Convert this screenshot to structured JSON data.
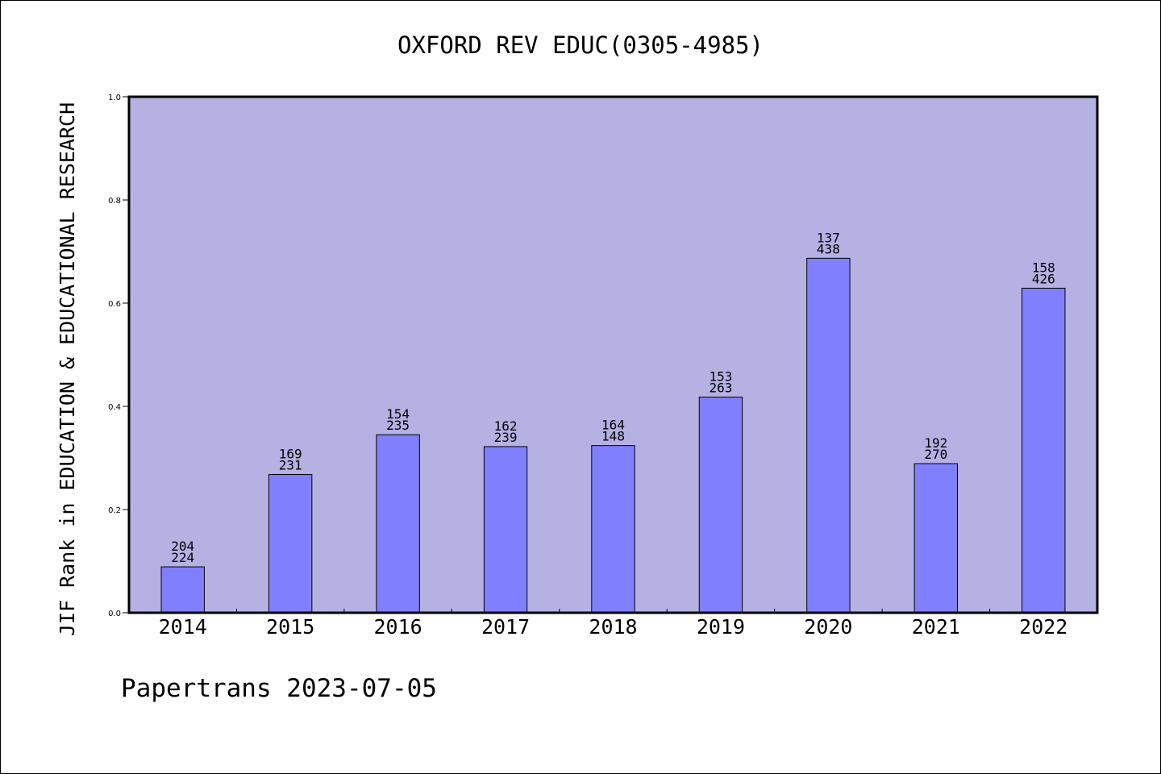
{
  "chart_data": {
    "type": "bar",
    "title": "OXFORD REV EDUC(0305-4985)",
    "ylabel": "JIF Rank in EDUCATION & EDUCATIONAL RESEARCH",
    "xlabel": "",
    "ylim": [
      0,
      1.0
    ],
    "yticks": [
      "0.0",
      "0.2",
      "0.4",
      "0.6",
      "0.8",
      "1.0"
    ],
    "ytick_values": [
      0,
      0.2,
      0.4,
      0.6,
      0.8,
      1.0
    ],
    "categories": [
      "2014",
      "2015",
      "2016",
      "2017",
      "2018",
      "2019",
      "2020",
      "2021",
      "2022"
    ],
    "values": [
      0.089,
      0.268,
      0.345,
      0.322,
      0.324,
      0.418,
      0.687,
      0.289,
      0.629
    ],
    "labels_top": [
      "204",
      "169",
      "154",
      "162",
      "164",
      "153",
      "137",
      "192",
      "158"
    ],
    "labels_bottom": [
      "224",
      "231",
      "235",
      "239",
      "148",
      "263",
      "438",
      "270",
      "426"
    ],
    "grid": false,
    "colors": {
      "plot_bg": "#b6b1e3",
      "bar": "#8080ff",
      "axis": "#000000"
    }
  },
  "footer": {
    "text": "Papertrans 2023-07-05"
  }
}
